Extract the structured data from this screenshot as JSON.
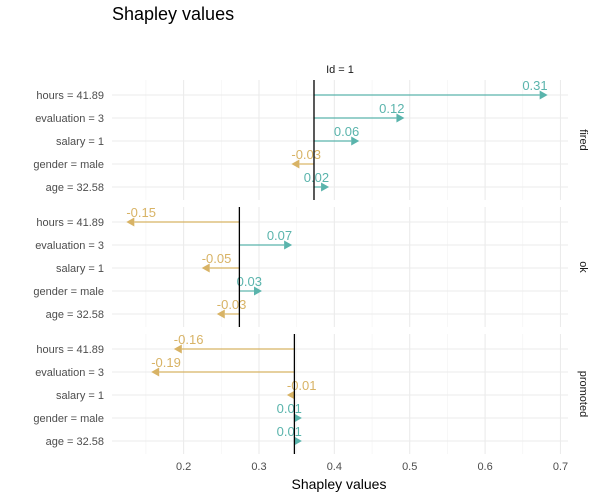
{
  "chart_data": {
    "type": "bar",
    "title": "Shapley values",
    "xlabel": "Shapley values",
    "strip_label": "Id = 1",
    "xlim": [
      0.105,
      0.71
    ],
    "xticks": [
      "0.2",
      "0.3",
      "0.4",
      "0.5",
      "0.6",
      "0.7"
    ],
    "xtick_values": [
      0.2,
      0.3,
      0.4,
      0.5,
      0.6,
      0.7
    ],
    "features": [
      "hours = 41.89",
      "evaluation = 3",
      "salary = 1",
      "gender = male",
      "age = 32.58"
    ],
    "colors": {
      "positive": "#5ab4ac",
      "negative": "#d8b365"
    },
    "panels": [
      {
        "name": "fired",
        "baseline": 0.373,
        "contributions": [
          0.31,
          0.12,
          0.06,
          -0.03,
          0.02
        ],
        "labels": [
          "0.31",
          "0.12",
          "0.06",
          "-0.03",
          "0.02"
        ]
      },
      {
        "name": "ok",
        "baseline": 0.274,
        "contributions": [
          -0.15,
          0.07,
          -0.05,
          0.03,
          -0.03
        ],
        "labels": [
          "-0.15",
          "0.07",
          "-0.05",
          "0.03",
          "-0.03"
        ]
      },
      {
        "name": "promoted",
        "baseline": 0.347,
        "contributions": [
          -0.16,
          -0.19,
          -0.01,
          0.01,
          0.01
        ],
        "labels": [
          "-0.16",
          "-0.19",
          "-0.01",
          "0.01",
          "0.01"
        ]
      }
    ]
  }
}
